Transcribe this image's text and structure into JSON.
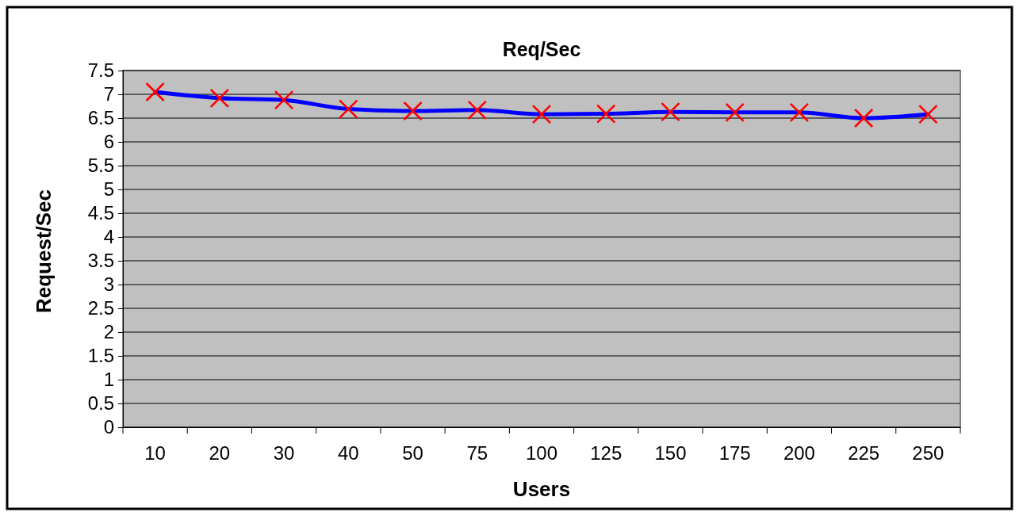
{
  "chart_data": {
    "type": "line",
    "title": "Req/Sec",
    "xlabel": "Users",
    "ylabel": "Request/Sec",
    "categories": [
      "10",
      "20",
      "30",
      "40",
      "50",
      "75",
      "100",
      "125",
      "150",
      "175",
      "200",
      "225",
      "250"
    ],
    "series": [
      {
        "color": "#0000ff",
        "values": [
          7.05,
          6.92,
          6.88,
          6.69,
          6.65,
          6.67,
          6.58,
          6.59,
          6.63,
          6.62,
          6.62,
          6.5,
          6.58
        ]
      }
    ],
    "ylim": [
      0,
      7.5
    ],
    "yticks": [
      0,
      0.5,
      1,
      1.5,
      2,
      2.5,
      3,
      3.5,
      4,
      4.5,
      5,
      5.5,
      6,
      6.5,
      7,
      7.5
    ],
    "grid": "y",
    "marker": "cross",
    "line_style": "solid"
  }
}
